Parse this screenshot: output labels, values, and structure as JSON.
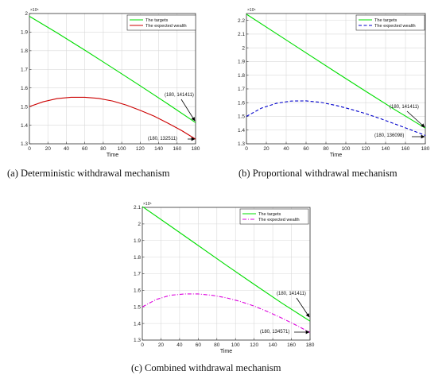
{
  "chart_data": [
    {
      "type": "line",
      "caption": "(a) Deterministic withdrawal mechanism",
      "xlabel": "Time",
      "ylabel": "",
      "xlim": [
        0,
        180
      ],
      "ylim": [
        1.3,
        2.0
      ],
      "y_multiplier_label": "×10⁵",
      "xticks": [
        0,
        20,
        40,
        60,
        80,
        100,
        120,
        140,
        160,
        180
      ],
      "yticks": [
        1.3,
        1.4,
        1.5,
        1.6,
        1.7,
        1.8,
        1.9,
        2.0
      ],
      "ytick_labels": [
        "1.3",
        "1.4",
        "1.5",
        "1.6",
        "1.7",
        "1.8",
        "1.9",
        "2"
      ],
      "grid": true,
      "legend_position": "top-right",
      "series": [
        {
          "name": "The targets",
          "color": "#00dd00",
          "dash": "solid",
          "x": [
            0,
            30,
            60,
            90,
            120,
            150,
            180
          ],
          "y": [
            1.985,
            1.896,
            1.803,
            1.708,
            1.612,
            1.514,
            1.41411
          ]
        },
        {
          "name": "The expected wealth",
          "color": "#cc0000",
          "dash": "solid",
          "x": [
            0,
            15,
            30,
            45,
            60,
            75,
            90,
            105,
            120,
            135,
            150,
            165,
            180
          ],
          "y": [
            1.5,
            1.526,
            1.543,
            1.55,
            1.55,
            1.544,
            1.53,
            1.508,
            1.48,
            1.449,
            1.411,
            1.371,
            1.32511
          ]
        }
      ],
      "annotations": [
        {
          "text": "(180, 141411)",
          "x": 180,
          "y": 1.41411
        },
        {
          "text": "(180, 132511)",
          "x": 180,
          "y": 1.32511
        }
      ]
    },
    {
      "type": "line",
      "caption": "(b) Proportional withdrawal mechanism",
      "xlabel": "Time",
      "ylabel": "",
      "xlim": [
        0,
        180
      ],
      "ylim": [
        1.3,
        2.25
      ],
      "y_multiplier_label": "×10⁵",
      "xticks": [
        0,
        20,
        40,
        60,
        80,
        100,
        120,
        140,
        160,
        180
      ],
      "yticks": [
        1.3,
        1.4,
        1.5,
        1.6,
        1.7,
        1.8,
        1.9,
        2.0,
        2.1,
        2.2
      ],
      "ytick_labels": [
        "1.3",
        "1.4",
        "1.5",
        "1.6",
        "1.7",
        "1.8",
        "1.9",
        "2",
        "2.1",
        "2.2"
      ],
      "grid": true,
      "legend_position": "top-right",
      "series": [
        {
          "name": "The targets",
          "color": "#00dd00",
          "dash": "solid",
          "x": [
            0,
            30,
            60,
            90,
            120,
            150,
            180
          ],
          "y": [
            2.245,
            2.104,
            1.963,
            1.822,
            1.683,
            1.546,
            1.41411
          ]
        },
        {
          "name": "The expected wealth",
          "color": "#0000cc",
          "dash": "dashed",
          "x": [
            0,
            15,
            30,
            45,
            60,
            75,
            90,
            105,
            120,
            135,
            150,
            165,
            180
          ],
          "y": [
            1.5,
            1.56,
            1.595,
            1.612,
            1.613,
            1.602,
            1.58,
            1.552,
            1.52,
            1.483,
            1.443,
            1.403,
            1.36098
          ]
        }
      ],
      "annotations": [
        {
          "text": "(180, 141411)",
          "x": 180,
          "y": 1.41411
        },
        {
          "text": "(180, 136098)",
          "x": 180,
          "y": 1.36098
        }
      ]
    },
    {
      "type": "line",
      "caption": "(c) Combined withdrawal mechanism",
      "xlabel": "Time",
      "ylabel": "",
      "xlim": [
        0,
        180
      ],
      "ylim": [
        1.3,
        2.1
      ],
      "y_multiplier_label": "×10⁵",
      "xticks": [
        0,
        20,
        40,
        60,
        80,
        100,
        120,
        140,
        160,
        180
      ],
      "yticks": [
        1.3,
        1.4,
        1.5,
        1.6,
        1.7,
        1.8,
        1.9,
        2.0,
        2.1
      ],
      "ytick_labels": [
        "1.3",
        "1.4",
        "1.5",
        "1.6",
        "1.7",
        "1.8",
        "1.9",
        "2",
        "2.1"
      ],
      "grid": true,
      "legend_position": "top-right",
      "series": [
        {
          "name": "The targets",
          "color": "#00dd00",
          "dash": "solid",
          "x": [
            0,
            30,
            60,
            90,
            120,
            150,
            180
          ],
          "y": [
            2.105,
            1.988,
            1.87,
            1.752,
            1.636,
            1.522,
            1.41411
          ]
        },
        {
          "name": "The expected wealth",
          "color": "#dd00dd",
          "dash": "dashdot",
          "x": [
            0,
            15,
            30,
            45,
            60,
            75,
            90,
            105,
            120,
            135,
            150,
            165,
            180
          ],
          "y": [
            1.5,
            1.545,
            1.57,
            1.578,
            1.578,
            1.57,
            1.555,
            1.533,
            1.505,
            1.47,
            1.432,
            1.39,
            1.34571
          ]
        }
      ],
      "annotations": [
        {
          "text": "(180, 141411)",
          "x": 180,
          "y": 1.41411
        },
        {
          "text": "(180, 134571)",
          "x": 180,
          "y": 1.34571
        }
      ]
    }
  ]
}
